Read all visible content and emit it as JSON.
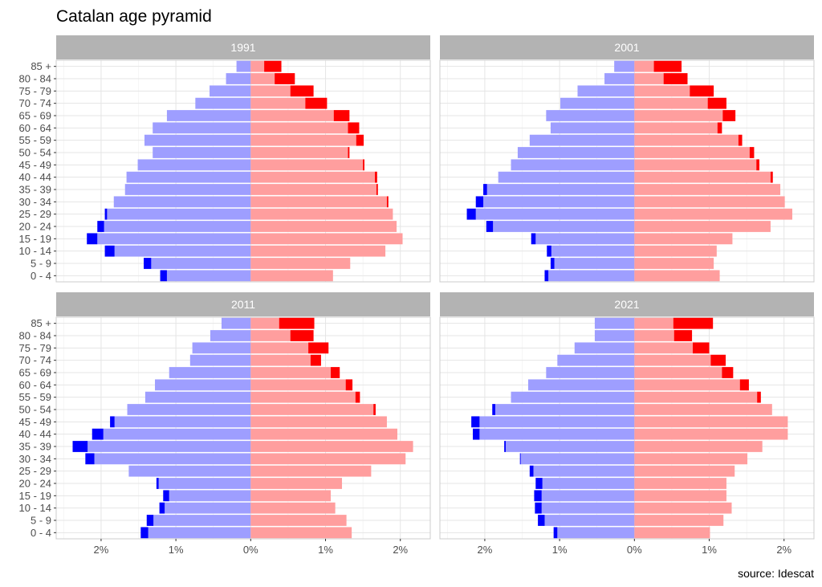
{
  "title": "Catalan age pyramid",
  "caption": "source: Idescat",
  "colors": {
    "left_base": "#9e9eff",
    "left_excess": "#0000ff",
    "right_base": "#ff9e9e",
    "right_excess": "#ff0000",
    "strip_bg": "#b3b3b3",
    "strip_text": "#ffffff",
    "grid": "#e5e5e5",
    "panel_border": "#cccccc",
    "axis_text": "#4d4d4d"
  },
  "chart_data": {
    "type": "bar",
    "orientation": "horizontal",
    "layout": "pyramid-facets",
    "categories": [
      "0 - 4",
      "5 - 9",
      "10 - 14",
      "15 - 19",
      "20 - 24",
      "25 - 29",
      "30 - 34",
      "35 - 39",
      "40 - 44",
      "45 - 49",
      "50 - 54",
      "55 - 59",
      "60 - 64",
      "65 - 69",
      "70 - 74",
      "75 - 79",
      "80 - 84",
      "85 +"
    ],
    "xlim": [
      -2.6,
      2.4
    ],
    "x_ticks": [
      -2,
      -1,
      0,
      1,
      2
    ],
    "x_tick_labels": [
      "2%",
      "1%",
      "0%",
      "1%",
      "2%"
    ],
    "grid": true,
    "facets": [
      {
        "label": "1991",
        "left": [
          1.12,
          1.33,
          1.82,
          2.05,
          1.96,
          1.92,
          1.83,
          1.68,
          1.66,
          1.51,
          1.31,
          1.42,
          1.31,
          1.12,
          0.74,
          0.55,
          0.33,
          0.19
        ],
        "right": [
          1.1,
          1.33,
          1.8,
          2.03,
          1.95,
          1.9,
          1.82,
          1.68,
          1.66,
          1.5,
          1.3,
          1.41,
          1.3,
          1.11,
          0.73,
          0.53,
          0.32,
          0.18
        ],
        "left_excess": [
          0.09,
          0.1,
          0.13,
          0.14,
          0.09,
          0.03,
          0.0,
          0.0,
          0.0,
          0.0,
          0.0,
          0.0,
          0.0,
          0.0,
          0.0,
          0.0,
          0.0,
          0.0
        ],
        "right_excess": [
          0.0,
          0.0,
          0.0,
          0.0,
          0.0,
          0.0,
          0.02,
          0.02,
          0.03,
          0.02,
          0.02,
          0.1,
          0.15,
          0.21,
          0.29,
          0.31,
          0.27,
          0.23
        ]
      },
      {
        "label": "2001",
        "left": [
          1.15,
          1.07,
          1.11,
          1.32,
          1.89,
          2.12,
          2.02,
          1.97,
          1.82,
          1.65,
          1.56,
          1.4,
          1.12,
          1.18,
          0.99,
          0.76,
          0.4,
          0.27
        ],
        "right": [
          1.14,
          1.06,
          1.1,
          1.31,
          1.82,
          2.11,
          2.01,
          1.95,
          1.82,
          1.63,
          1.54,
          1.39,
          1.11,
          1.18,
          0.98,
          0.74,
          0.39,
          0.26
        ],
        "left_excess": [
          0.05,
          0.05,
          0.06,
          0.06,
          0.09,
          0.12,
          0.1,
          0.05,
          0.0,
          0.0,
          0.0,
          0.0,
          0.0,
          0.0,
          0.0,
          0.0,
          0.0,
          0.0
        ],
        "right_excess": [
          0.0,
          0.0,
          0.0,
          0.0,
          0.0,
          0.0,
          0.0,
          0.0,
          0.03,
          0.04,
          0.06,
          0.05,
          0.06,
          0.17,
          0.25,
          0.32,
          0.32,
          0.37
        ]
      },
      {
        "label": "2011",
        "left": [
          1.37,
          1.3,
          1.15,
          1.09,
          1.23,
          1.63,
          2.09,
          2.18,
          1.97,
          1.82,
          1.65,
          1.41,
          1.28,
          1.09,
          0.81,
          0.78,
          0.54,
          0.39
        ],
        "right": [
          1.35,
          1.28,
          1.13,
          1.07,
          1.22,
          1.61,
          2.07,
          2.17,
          1.96,
          1.82,
          1.64,
          1.4,
          1.27,
          1.07,
          0.8,
          0.77,
          0.53,
          0.38
        ],
        "left_excess": [
          0.1,
          0.09,
          0.07,
          0.08,
          0.03,
          0.0,
          0.12,
          0.2,
          0.15,
          0.06,
          0.0,
          0.0,
          0.0,
          0.0,
          0.0,
          0.0,
          0.0,
          0.0
        ],
        "right_excess": [
          0.0,
          0.0,
          0.0,
          0.0,
          0.0,
          0.0,
          0.0,
          0.0,
          0.0,
          0.0,
          0.03,
          0.06,
          0.09,
          0.12,
          0.14,
          0.27,
          0.31,
          0.47
        ]
      },
      {
        "label": "2021",
        "left": [
          1.03,
          1.2,
          1.24,
          1.24,
          1.23,
          1.35,
          1.52,
          1.72,
          2.07,
          2.07,
          1.86,
          1.65,
          1.42,
          1.18,
          1.03,
          0.8,
          0.53,
          0.53
        ],
        "right": [
          1.01,
          1.19,
          1.3,
          1.23,
          1.23,
          1.34,
          1.51,
          1.71,
          2.05,
          2.05,
          1.84,
          1.64,
          1.41,
          1.17,
          1.02,
          0.78,
          0.53,
          0.52
        ],
        "left_excess": [
          0.05,
          0.09,
          0.09,
          0.1,
          0.09,
          0.05,
          0.01,
          0.02,
          0.09,
          0.11,
          0.04,
          0.0,
          0.0,
          0.0,
          0.0,
          0.0,
          0.0,
          0.0
        ],
        "right_excess": [
          0.0,
          0.0,
          0.0,
          0.0,
          0.0,
          0.0,
          0.0,
          0.0,
          0.0,
          0.0,
          0.0,
          0.05,
          0.12,
          0.15,
          0.2,
          0.22,
          0.24,
          0.53
        ]
      }
    ]
  }
}
